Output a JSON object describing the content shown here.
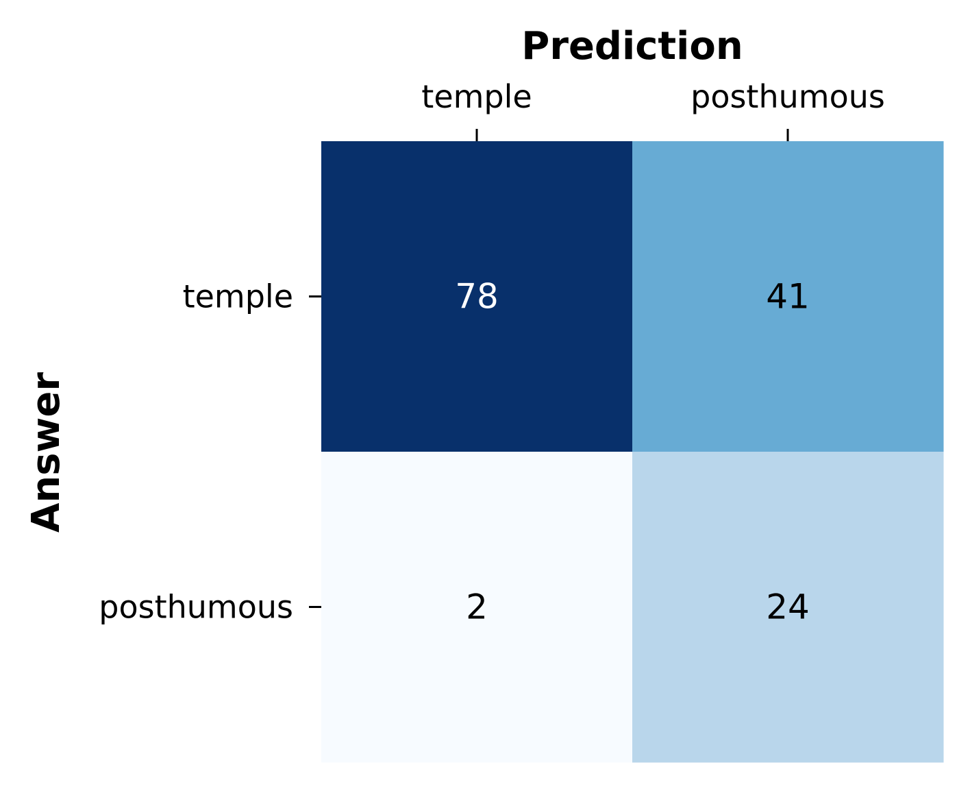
{
  "chart_data": {
    "type": "heatmap",
    "xlabel": "Prediction",
    "ylabel": "Answer",
    "x_categories": [
      "temple",
      "posthumous"
    ],
    "y_categories": [
      "temple",
      "posthumous"
    ],
    "values": [
      [
        78,
        41
      ],
      [
        2,
        24
      ]
    ],
    "colormap": "Blues",
    "value_range": [
      2,
      78
    ],
    "x_axis_position": "top",
    "grid": false,
    "legend": "none",
    "colorbar": false
  }
}
